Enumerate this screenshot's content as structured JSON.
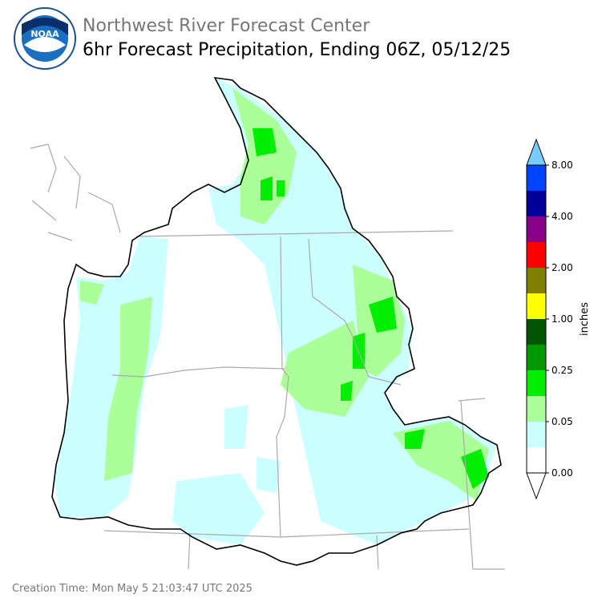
{
  "header": {
    "organization": "Northwest River Forecast Center",
    "title": "6hr Forecast Precipitation, Ending 06Z, 05/12/25",
    "logo_text": "NOAA"
  },
  "colorbar": {
    "label": "inches",
    "ticks": [
      "0.00",
      "0.05",
      "0.25",
      "1.00",
      "2.00",
      "4.00",
      "8.00"
    ],
    "colors": [
      "#ffffff",
      "#ccffff",
      "#aaff99",
      "#00ee00",
      "#009900",
      "#005500",
      "#ffff00",
      "#807f00",
      "#ff0000",
      "#880088",
      "#000099",
      "#0044ff"
    ],
    "under_color": "#ffffff",
    "over_color": "#77ccff"
  },
  "footer": {
    "creation_time": "Creation Time: Mon May 5 21:03:47 UTC 2025"
  }
}
